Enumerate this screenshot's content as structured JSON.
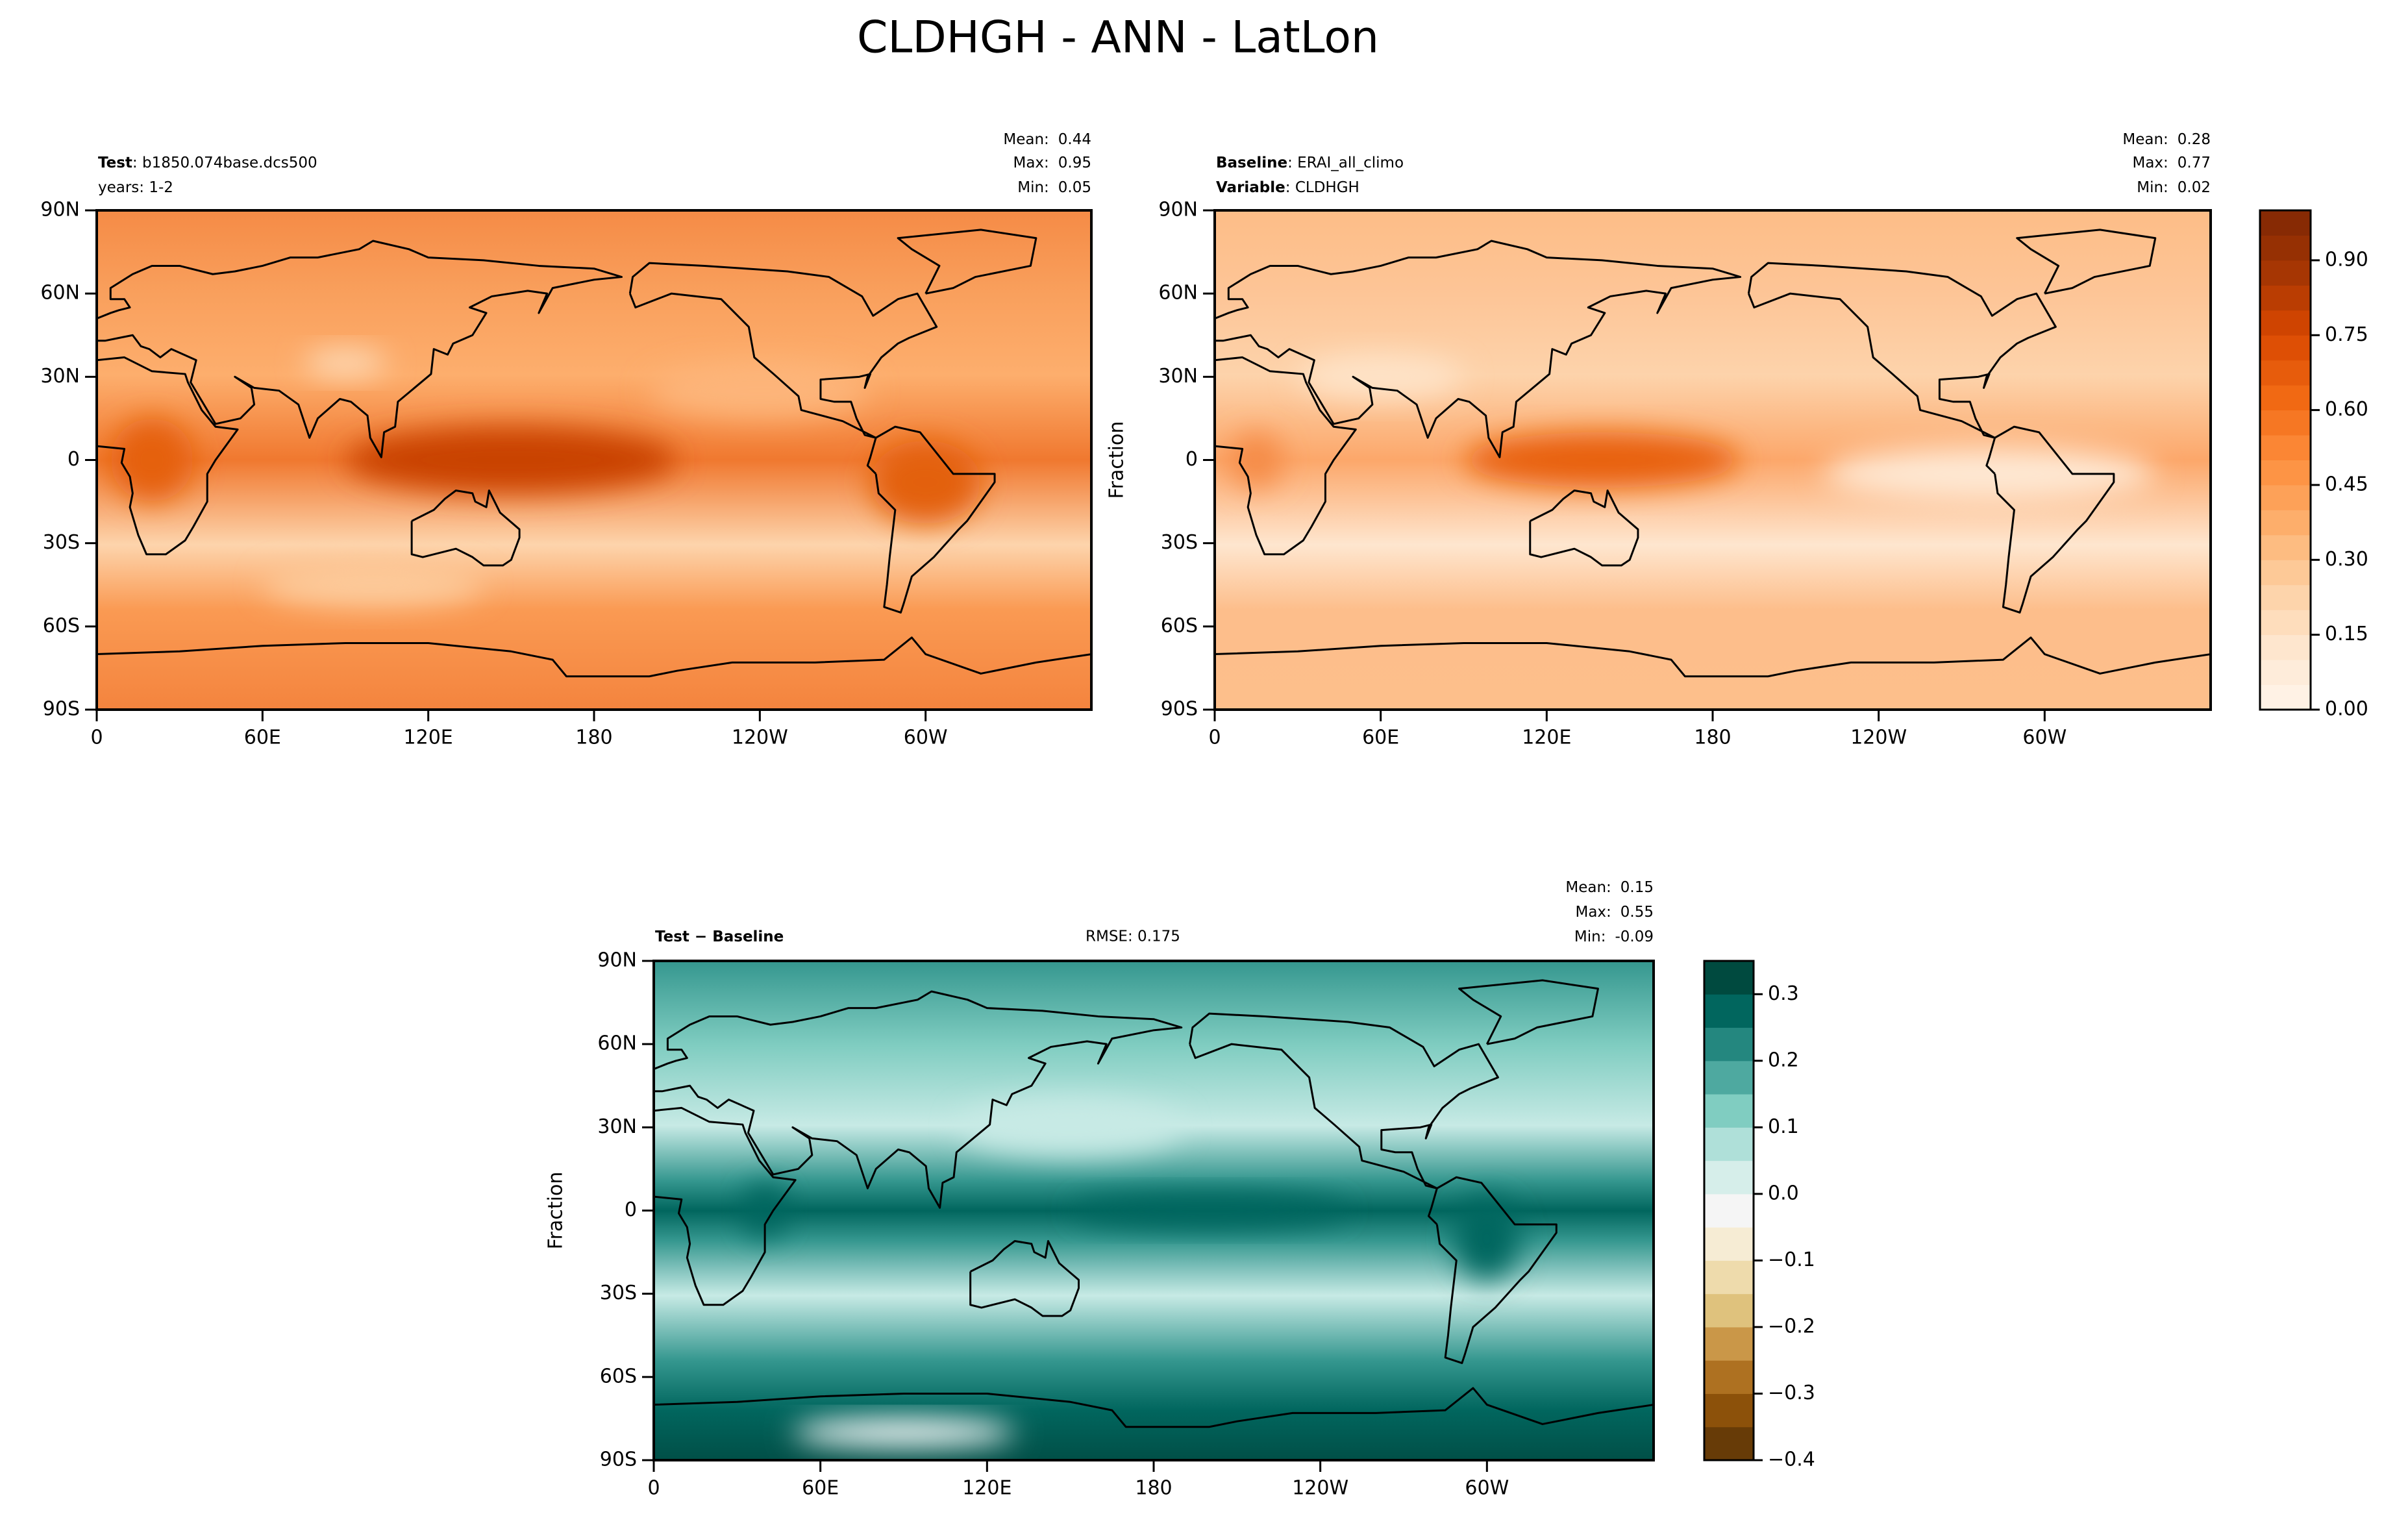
{
  "title": "CLDHGH - ANN - LatLon",
  "axes": {
    "xlim": [
      0,
      360
    ],
    "ylim": [
      -90,
      90
    ],
    "xticks": [
      0,
      {
        "value": 60,
        "label": "60E"
      },
      {
        "value": 120,
        "label": "120E"
      },
      180,
      {
        "value": 240,
        "label": "120W"
      },
      {
        "value": 300,
        "label": "60W"
      }
    ],
    "yticks": [
      {
        "value": 90,
        "label": "90N"
      },
      {
        "value": 60,
        "label": "60N"
      },
      {
        "value": 30,
        "label": "30N"
      },
      0,
      {
        "value": -30,
        "label": "30S"
      },
      {
        "value": -60,
        "label": "60S"
      },
      {
        "value": -90,
        "label": "90S"
      }
    ]
  },
  "panels": [
    {
      "header": [
        {
          "label": "Test",
          "text": ": b1850.074base.dcs500"
        },
        {
          "text": "years: 1-2"
        }
      ],
      "stats": [
        {
          "label": "Mean:",
          "value": "0.44"
        },
        {
          "label": "Max:",
          "value": "0.95"
        },
        {
          "label": "Min:",
          "value": "0.05"
        }
      ]
    },
    {
      "header": [
        {
          "label": "Baseline",
          "text": ": ERAI_all_climo"
        },
        {
          "label": "Variable",
          "text": ": CLDHGH"
        }
      ],
      "stats": [
        {
          "label": "Mean:",
          "value": "0.28"
        },
        {
          "label": "Max:",
          "value": "0.77"
        },
        {
          "label": "Min:",
          "value": "0.02"
        }
      ],
      "ylabel": "Fraction"
    },
    {
      "header": [
        {
          "label": "Test − Baseline"
        }
      ],
      "rmse": "RMSE: 0.175",
      "stats": [
        {
          "label": "Mean:",
          "value": "0.15"
        },
        {
          "label": "Max:",
          "value": "0.55"
        },
        {
          "label": "Min:",
          "value": "-0.09"
        }
      ],
      "ylabel": "Fraction"
    }
  ],
  "colorbars": [
    {
      "lim": [
        0,
        1
      ],
      "bands": 20,
      "cmap": [
        "#fff5eb",
        "#fee6ce",
        "#fdd0a2",
        "#fdae6b",
        "#fd8d3c",
        "#f16913",
        "#d94801",
        "#a63603",
        "#7f2704"
      ],
      "ticks": [
        {
          "value": 0,
          "label": "0.00"
        },
        {
          "value": 0.15,
          "label": "0.15"
        },
        {
          "value": 0.3,
          "label": "0.30"
        },
        {
          "value": 0.45,
          "label": "0.45"
        },
        {
          "value": 0.6,
          "label": "0.60"
        },
        {
          "value": 0.75,
          "label": "0.75"
        },
        {
          "value": 0.9,
          "label": "0.90"
        }
      ]
    },
    {
      "lim": [
        -0.4,
        0.35
      ],
      "bands": 15,
      "cmap": [
        "#543005",
        "#8c510a",
        "#bf812d",
        "#dfc27d",
        "#f6e8c3",
        "#f5f5f5",
        "#c7eae5",
        "#80cdc1",
        "#35978f",
        "#01665e",
        "#003c30"
      ],
      "ticks": [
        {
          "value": -0.4,
          "label": "−0.4"
        },
        {
          "value": -0.3,
          "label": "−0.3"
        },
        {
          "value": -0.2,
          "label": "−0.2"
        },
        {
          "value": -0.1,
          "label": "−0.1"
        },
        {
          "value": 0,
          "label": "0.0"
        },
        {
          "value": 0.1,
          "label": "0.1"
        },
        {
          "value": 0.2,
          "label": "0.2"
        },
        {
          "value": 0.3,
          "label": "0.3"
        }
      ]
    }
  ]
}
